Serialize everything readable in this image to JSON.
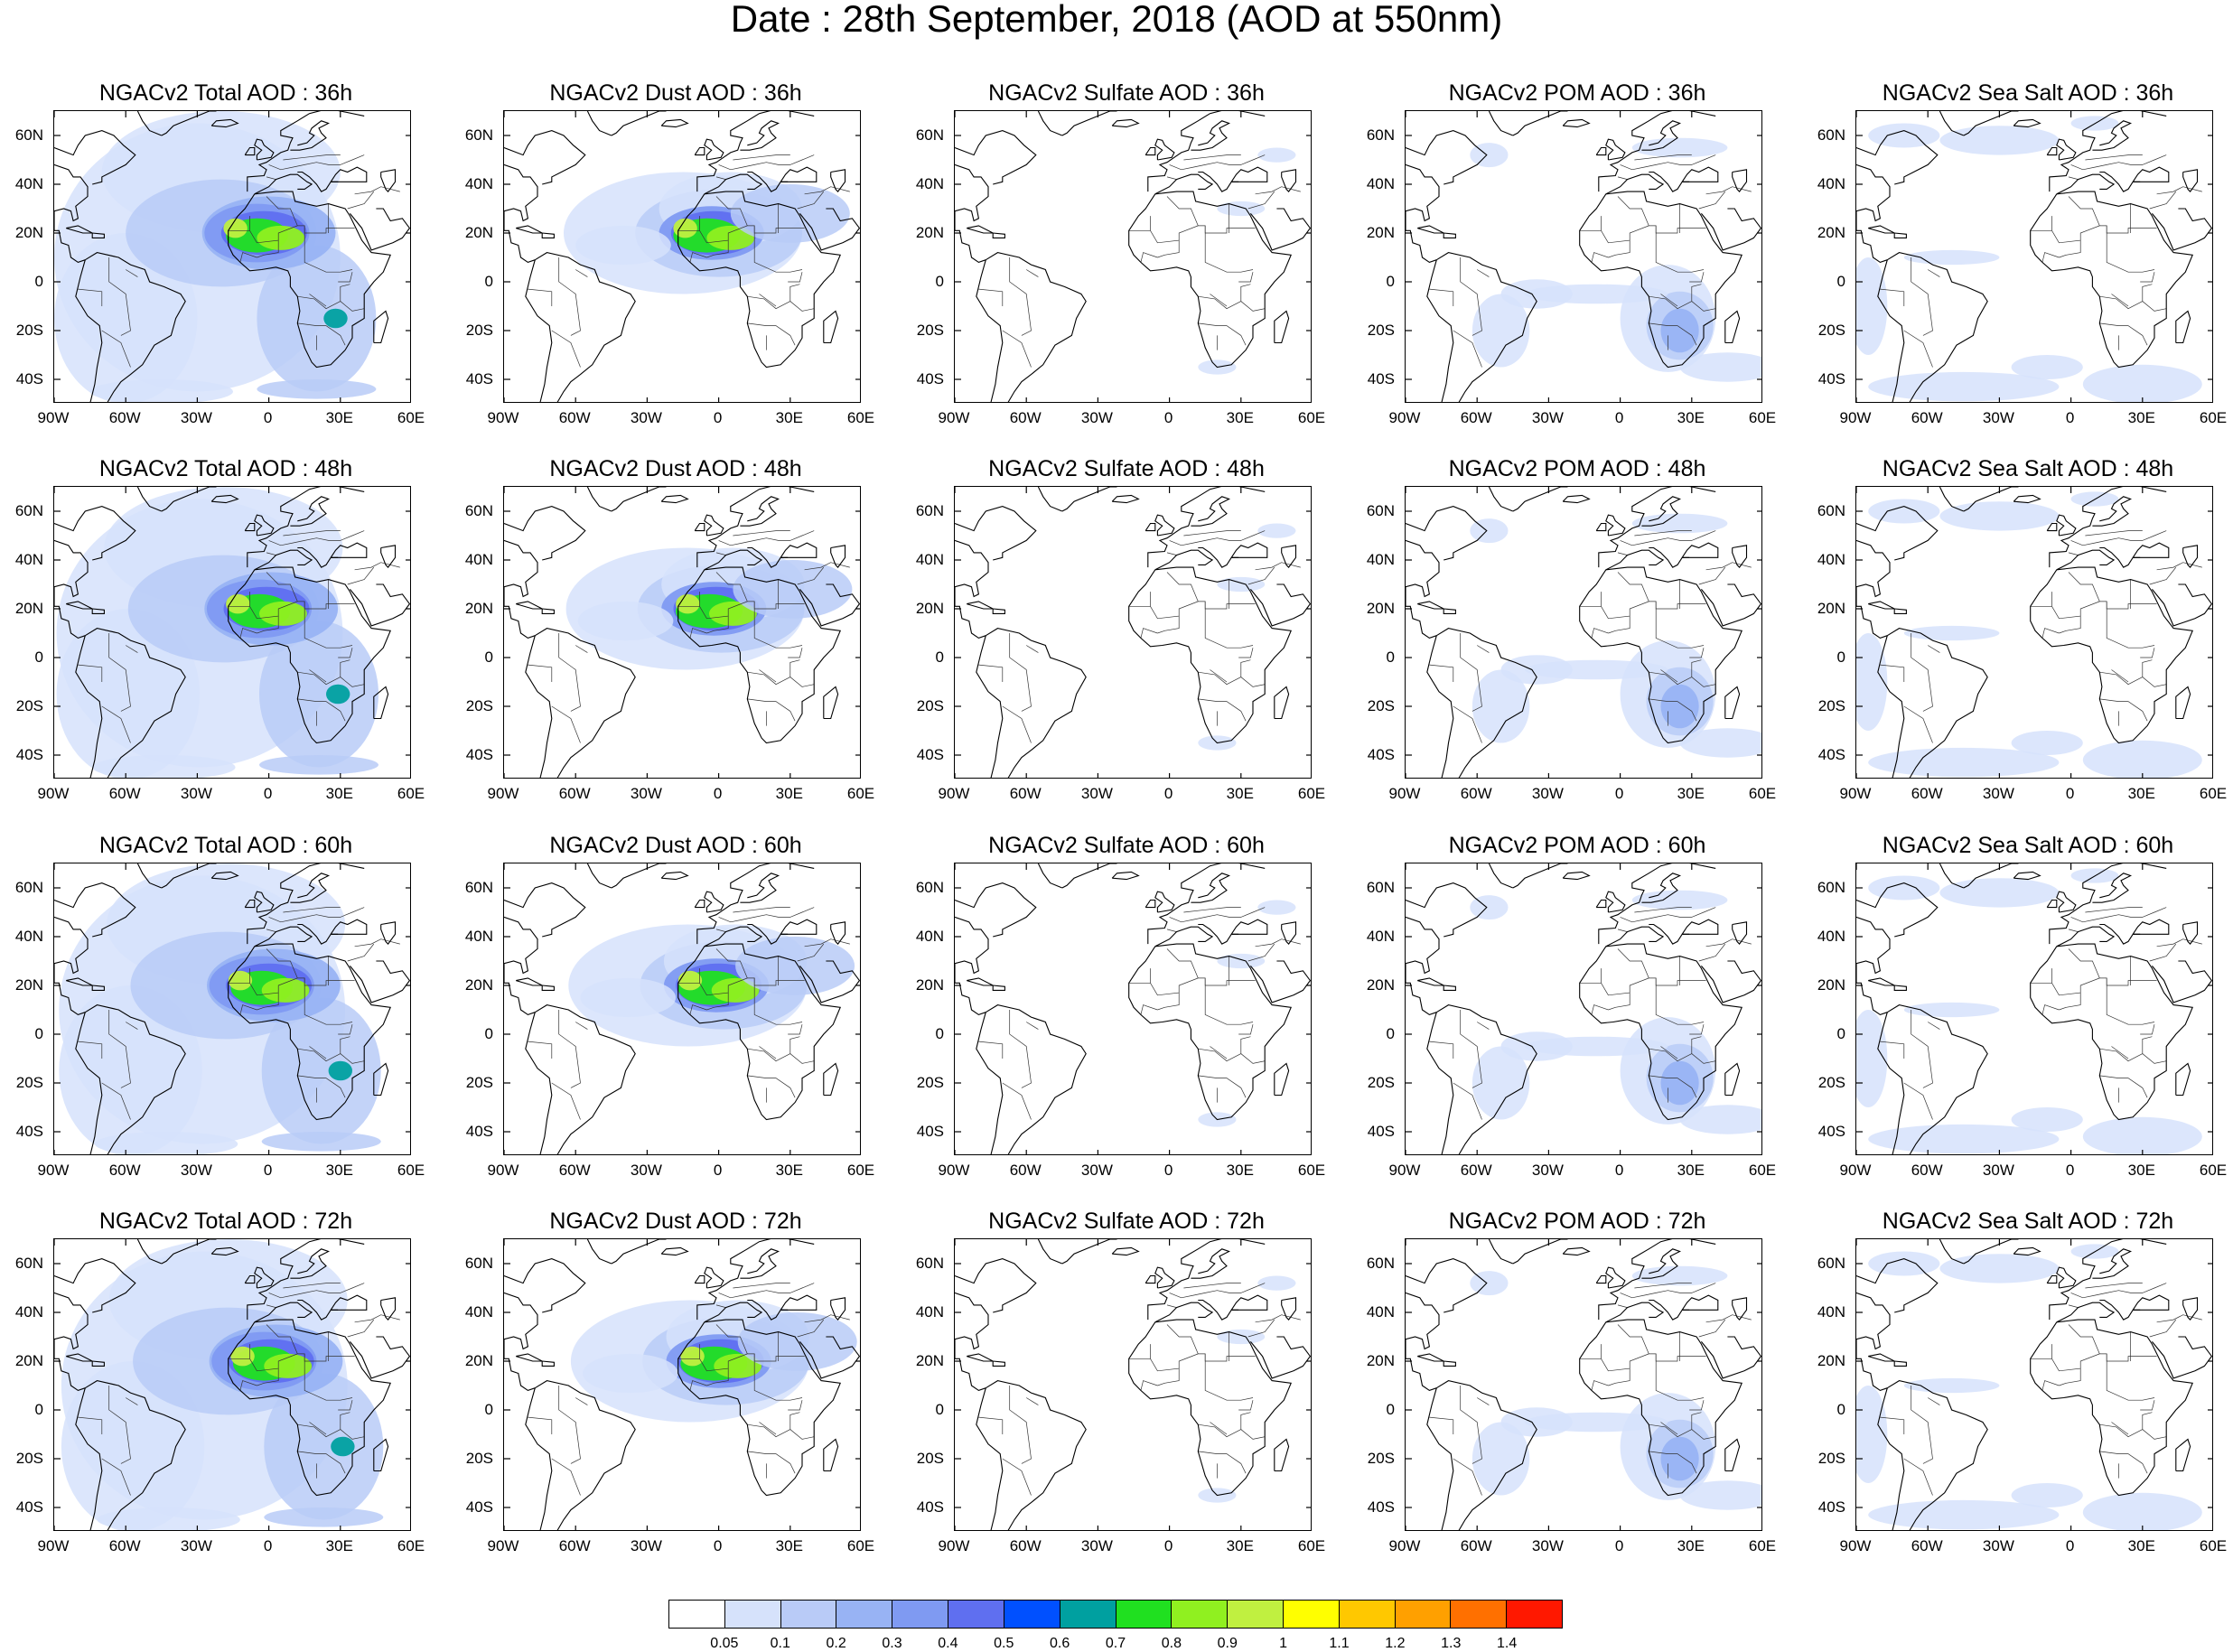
{
  "title": "Date : 28th September, 2018 (AOD at 550nm)",
  "map": {
    "lon_range": [
      -90,
      60
    ],
    "lat_range": [
      -50,
      70
    ],
    "lat_ticks": [
      "60N",
      "40N",
      "20N",
      "0",
      "20S",
      "40S"
    ],
    "lon_ticks": [
      "90W",
      "60W",
      "30W",
      "0",
      "30E",
      "60E"
    ]
  },
  "panels": [
    {
      "title": "NGACv2 Total AOD : 36h",
      "species": "total",
      "hour": 36
    },
    {
      "title": "NGACv2 Dust AOD : 36h",
      "species": "dust",
      "hour": 36
    },
    {
      "title": "NGACv2 Sulfate AOD : 36h",
      "species": "sulfate",
      "hour": 36
    },
    {
      "title": "NGACv2 POM AOD : 36h",
      "species": "pom",
      "hour": 36
    },
    {
      "title": "NGACv2 Sea Salt AOD : 36h",
      "species": "seasalt",
      "hour": 36
    },
    {
      "title": "NGACv2 Total AOD : 48h",
      "species": "total",
      "hour": 48
    },
    {
      "title": "NGACv2 Dust AOD : 48h",
      "species": "dust",
      "hour": 48
    },
    {
      "title": "NGACv2 Sulfate AOD : 48h",
      "species": "sulfate",
      "hour": 48
    },
    {
      "title": "NGACv2 POM AOD : 48h",
      "species": "pom",
      "hour": 48
    },
    {
      "title": "NGACv2 Sea Salt AOD : 48h",
      "species": "seasalt",
      "hour": 48
    },
    {
      "title": "NGACv2 Total AOD : 60h",
      "species": "total",
      "hour": 60
    },
    {
      "title": "NGACv2 Dust AOD : 60h",
      "species": "dust",
      "hour": 60
    },
    {
      "title": "NGACv2 Sulfate AOD : 60h",
      "species": "sulfate",
      "hour": 60
    },
    {
      "title": "NGACv2 POM AOD : 60h",
      "species": "pom",
      "hour": 60
    },
    {
      "title": "NGACv2 Sea Salt AOD : 60h",
      "species": "seasalt",
      "hour": 60
    },
    {
      "title": "NGACv2 Total AOD : 72h",
      "species": "total",
      "hour": 72
    },
    {
      "title": "NGACv2 Dust AOD : 72h",
      "species": "dust",
      "hour": 72
    },
    {
      "title": "NGACv2 Sulfate AOD : 72h",
      "species": "sulfate",
      "hour": 72
    },
    {
      "title": "NGACv2 POM AOD : 72h",
      "species": "pom",
      "hour": 72
    },
    {
      "title": "NGACv2 Sea Salt  AOD : 72h",
      "species": "seasalt",
      "hour": 72
    }
  ],
  "colorbar": {
    "labels": [
      "0.05",
      "0.1",
      "0.2",
      "0.3",
      "0.4",
      "0.5",
      "0.6",
      "0.7",
      "0.8",
      "0.9",
      "1",
      "1.1",
      "1.2",
      "1.3",
      "1.4"
    ],
    "colors": [
      "#ffffff",
      "#d6e2fb",
      "#b9cbf7",
      "#98b3f4",
      "#7f9af2",
      "#5f6ff0",
      "#0050ff",
      "#00a0a0",
      "#20e020",
      "#90f020",
      "#c0f040",
      "#ffff00",
      "#ffc800",
      "#ffa000",
      "#ff7000",
      "#ff1800"
    ]
  }
}
